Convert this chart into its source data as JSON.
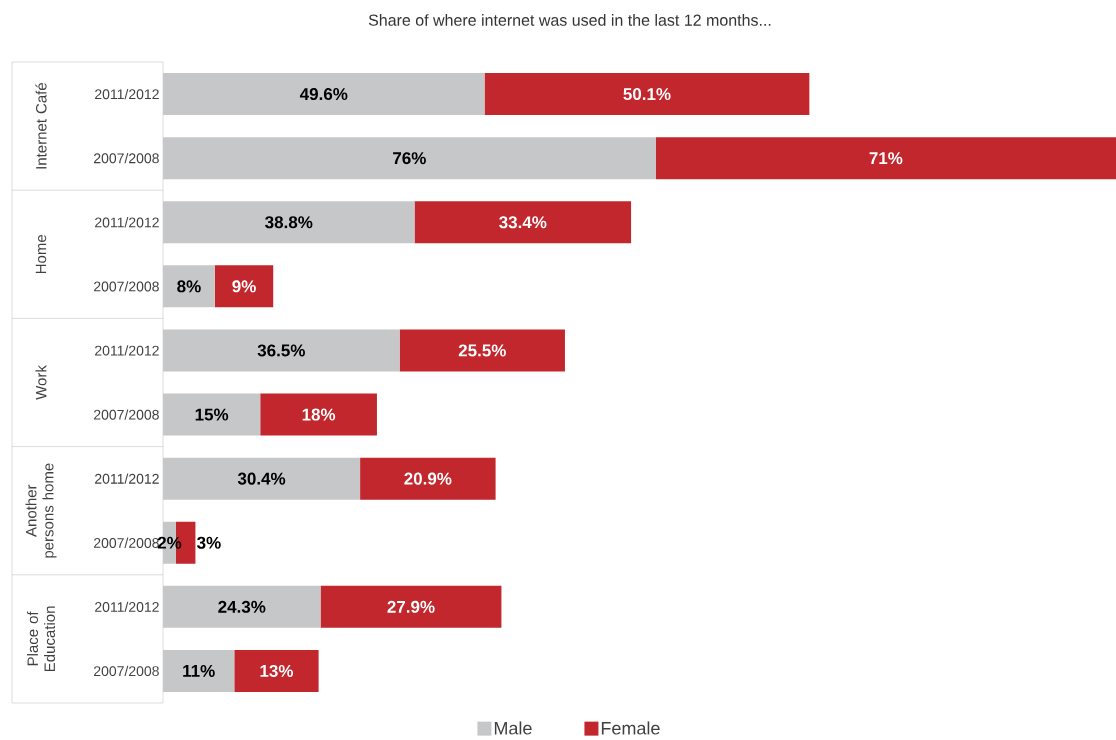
{
  "chart_data": {
    "type": "bar",
    "orientation": "horizontal",
    "stacked": true,
    "title": "Share of where internet was used in the last 12 months...",
    "categories": [
      "2011/2012",
      "2007/2008",
      "2011/2012",
      "2007/2008",
      "2011/2012",
      "2007/2008",
      "2011/2012",
      "2007/2008",
      "2011/2012",
      "2007/2008"
    ],
    "annotations": [
      "Internet Café",
      "Home",
      "Work",
      "Another persons home",
      "Place of Education"
    ],
    "series": [
      {
        "name": "Male",
        "color": "#c6c7c8",
        "values": [
          49.6,
          76,
          38.8,
          8,
          36.5,
          15,
          30.4,
          2,
          24.3,
          11
        ],
        "value_labels": [
          "49.6%",
          "76%",
          "38.8%",
          "8%",
          "36.5%",
          "15%",
          "30.4%",
          "2%",
          "24.3%",
          "11%"
        ]
      },
      {
        "name": "Female",
        "color": "#c1272d",
        "values": [
          50.1,
          71,
          33.4,
          9,
          25.5,
          18,
          20.9,
          3,
          27.9,
          13
        ],
        "value_labels": [
          "50.1%",
          "71%",
          "33.4%",
          "9%",
          "25.5%",
          "18%",
          "20.9%",
          "3%",
          "27.9%",
          "13%"
        ]
      }
    ],
    "legend": "bottom"
  }
}
